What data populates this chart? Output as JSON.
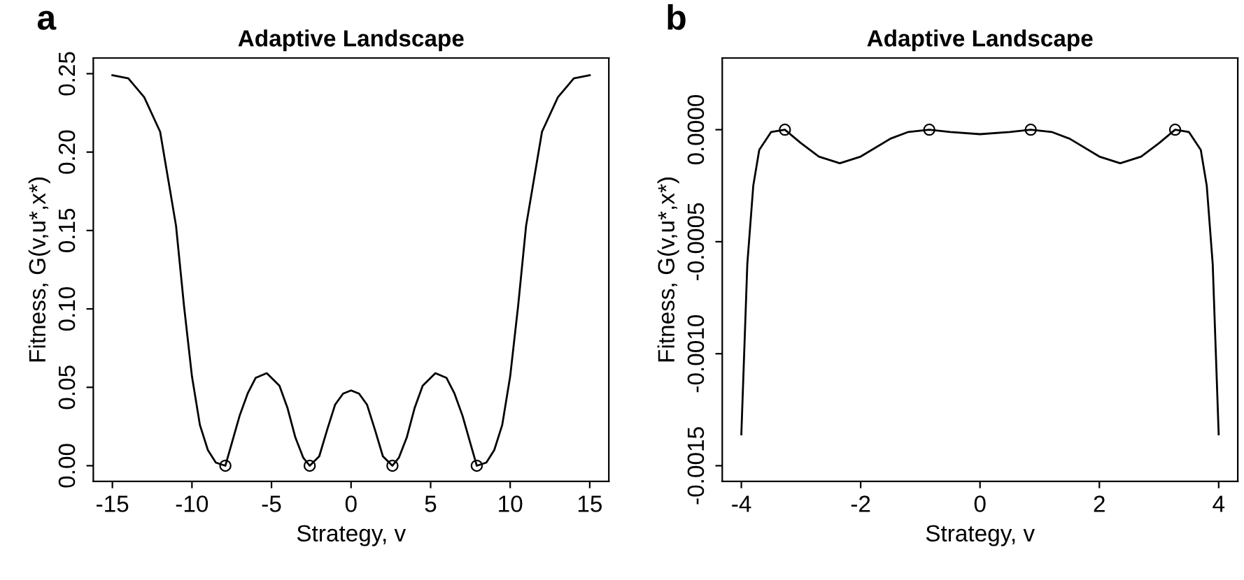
{
  "chart_data": [
    {
      "type": "line",
      "title": "Adaptive Landscape",
      "xlabel": "Strategy, v",
      "ylabel": "Fitness, G(v,u*,x*)",
      "annotations": [
        "a"
      ],
      "xlim": [
        -16.2,
        16.2
      ],
      "ylim": [
        -0.01,
        0.26
      ],
      "xticks": [
        -15,
        -10,
        -5,
        0,
        5,
        10,
        15
      ],
      "yticks": [
        {
          "value": 0,
          "label": "0.00"
        },
        {
          "value": 0.05,
          "label": "0.05"
        },
        {
          "value": 0.1,
          "label": "0.10"
        },
        {
          "value": 0.15,
          "label": "0.15"
        },
        {
          "value": 0.2,
          "label": "0.20"
        },
        {
          "value": 0.25,
          "label": "0.25"
        }
      ],
      "grid": false,
      "legend": false,
      "series": [
        {
          "color": "#000000",
          "marker": "none",
          "line_style": "solid",
          "x": [
            -15,
            -14,
            -13,
            -12,
            -11,
            -10.5,
            -10,
            -9.5,
            -9,
            -8.5,
            -7.9,
            -7,
            -6.5,
            -6,
            -5.3,
            -4.5,
            -4,
            -3.5,
            -3,
            -2.6,
            -2,
            -1.5,
            -1,
            -0.5,
            0,
            0.5,
            1,
            1.5,
            2,
            2.6,
            3,
            3.5,
            4,
            4.5,
            5.3,
            6,
            6.5,
            7,
            7.9,
            8.5,
            9,
            9.5,
            10,
            10.5,
            11,
            12,
            13,
            14,
            15
          ],
          "values": [
            0.249,
            0.247,
            0.235,
            0.213,
            0.153,
            0.102,
            0.057,
            0.026,
            0.01,
            0.002,
            0,
            0.032,
            0.046,
            0.056,
            0.059,
            0.051,
            0.037,
            0.018,
            0.005,
            0,
            0.006,
            0.023,
            0.039,
            0.046,
            0.048,
            0.046,
            0.039,
            0.023,
            0.006,
            0,
            0.005,
            0.018,
            0.037,
            0.051,
            0.059,
            0.056,
            0.046,
            0.032,
            0,
            0.002,
            0.01,
            0.026,
            0.057,
            0.102,
            0.153,
            0.213,
            0.235,
            0.247,
            0.249
          ]
        },
        {
          "type": "scatter",
          "color": "#000000",
          "marker": "circle",
          "x": [
            -7.9,
            -2.6,
            2.6,
            7.9
          ],
          "values": [
            0,
            0,
            0,
            0
          ]
        }
      ]
    },
    {
      "type": "line",
      "title": "Adaptive Landscape",
      "xlabel": "Strategy, v",
      "ylabel": "Fitness, G(v,u*,x*)",
      "annotations": [
        "b"
      ],
      "xlim": [
        -4.32,
        4.32
      ],
      "ylim": [
        -0.00157,
        0.00032
      ],
      "xticks": [
        -4,
        -2,
        0,
        2,
        4
      ],
      "yticks": [
        {
          "value": -0.0015,
          "label": "-0.0015"
        },
        {
          "value": -0.001,
          "label": "-0.0010"
        },
        {
          "value": -0.0005,
          "label": "-0.0005"
        },
        {
          "value": 0,
          "label": "0.0000"
        }
      ],
      "grid": false,
      "legend": false,
      "series": [
        {
          "color": "#000000",
          "marker": "none",
          "line_style": "solid",
          "x": [
            -4,
            -3.95,
            -3.9,
            -3.8,
            -3.7,
            -3.5,
            -3.27,
            -3,
            -2.7,
            -2.35,
            -2,
            -1.5,
            -1.2,
            -0.85,
            -0.5,
            0,
            0.5,
            0.85,
            1.2,
            1.5,
            2,
            2.35,
            2.7,
            3,
            3.27,
            3.5,
            3.7,
            3.8,
            3.9,
            3.95,
            4
          ],
          "values": [
            -0.00136,
            -0.00098,
            -0.0006,
            -0.00025,
            -9e-05,
            -1e-05,
            0,
            -6e-05,
            -0.00012,
            -0.00015,
            -0.00012,
            -4e-05,
            -1e-05,
            0,
            -1e-05,
            -2e-05,
            -1e-05,
            0,
            -1e-05,
            -4e-05,
            -0.00012,
            -0.00015,
            -0.00012,
            -6e-05,
            0,
            -1e-05,
            -9e-05,
            -0.00025,
            -0.0006,
            -0.00098,
            -0.00136
          ]
        },
        {
          "type": "scatter",
          "color": "#000000",
          "marker": "circle",
          "x": [
            -3.27,
            -0.85,
            0.85,
            3.27
          ],
          "values": [
            0,
            0,
            0,
            0
          ]
        }
      ]
    }
  ]
}
